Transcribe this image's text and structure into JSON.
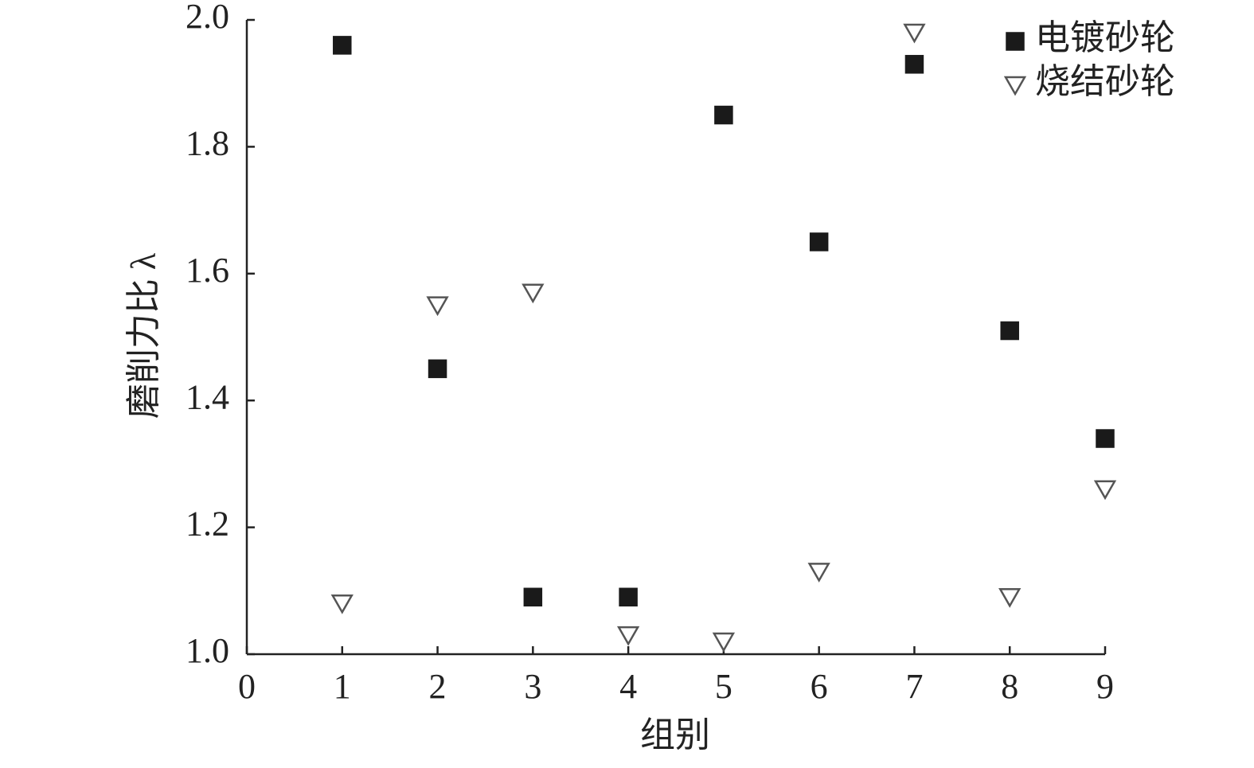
{
  "chart_data": {
    "type": "scatter",
    "x_label": "组别",
    "y_label": "磨削力比 λ",
    "x": [
      1,
      2,
      3,
      4,
      5,
      6,
      7,
      8,
      9
    ],
    "series": [
      {
        "name": "电镀砂轮",
        "color": "#1a1a1a",
        "marker": "square",
        "values": [
          1.96,
          1.45,
          1.09,
          1.09,
          1.85,
          1.65,
          1.93,
          1.51,
          1.34
        ]
      },
      {
        "name": "烧结砂轮",
        "color": "#555555",
        "marker": "triangle-down-open",
        "values": [
          1.08,
          1.55,
          1.57,
          1.03,
          1.02,
          1.13,
          1.98,
          1.09,
          1.26
        ]
      }
    ],
    "xlim": [
      0,
      9
    ],
    "xticks": [
      0,
      1,
      2,
      3,
      4,
      5,
      6,
      7,
      8,
      9
    ],
    "ylim": [
      1,
      2
    ],
    "yticks": [
      {
        "value": 1,
        "label": "1.0"
      },
      1.2,
      1.4,
      1.6,
      1.8,
      {
        "value": 2,
        "label": "2.0"
      }
    ],
    "grid": false,
    "legend": "upper right"
  }
}
